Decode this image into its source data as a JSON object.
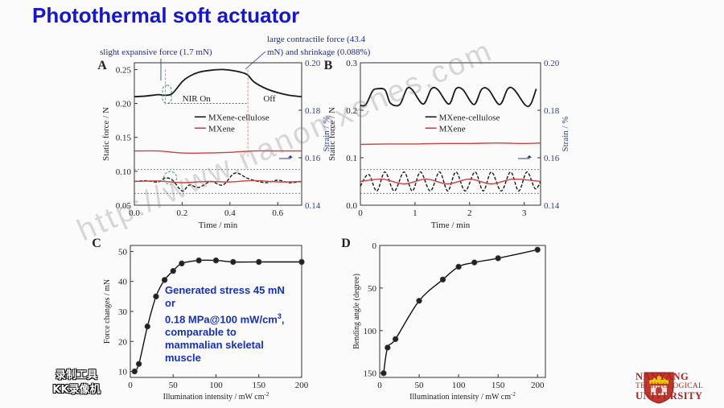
{
  "slide": {
    "title": "Photothermal soft actuator",
    "recorder_badge": [
      "录制工具",
      "KK录像机"
    ],
    "watermark": "http://www.nanomxenes.com",
    "university": {
      "line1": "NANYANG",
      "line2": "TECHNOLOGICAL",
      "line3": "UNIVERSITY"
    },
    "stress_note": {
      "line1": "Generated stress 45 mN",
      "line2": "or",
      "line3a": "0.18 MPa@100 mW/cm",
      "line3sup": "3",
      "line3b": ",",
      "line4": "comparable to",
      "line5": "mammalian skeletal",
      "line6": "muscle"
    }
  },
  "chart_data": [
    {
      "panel": "A",
      "type": "line",
      "xlabel": "Time / min",
      "ylabel": "Static force / N",
      "y2label": "Strain / %",
      "xlim": [
        0.0,
        0.7
      ],
      "ylim": [
        0.05,
        0.26
      ],
      "y2lim": [
        0.14,
        0.2
      ],
      "xticks": [
        "0.0",
        "0.2",
        "0.4",
        "0.6"
      ],
      "yticks": [
        "0.05",
        "0.10",
        "0.15",
        "0.20",
        "0.25"
      ],
      "y2ticks": [
        "0.14",
        "0.16",
        "0.18",
        "0.20"
      ],
      "annotations": {
        "slight": "slight expansive force (1.7 mN)",
        "large1": "large contractile force (43.4",
        "large2": "mN) and shrinkage (0.088%)",
        "nir_on": "NIR On",
        "off": "Off"
      },
      "legend": [
        "MXene-cellulose",
        "MXene"
      ],
      "series": [
        {
          "name": "MXene-cellulose",
          "axis": "force",
          "color": "#1a1a1a",
          "x": [
            0.0,
            0.05,
            0.1,
            0.13,
            0.16,
            0.2,
            0.23,
            0.27,
            0.32,
            0.37,
            0.42,
            0.47,
            0.5,
            0.55,
            0.6,
            0.65,
            0.7
          ],
          "y": [
            0.21,
            0.211,
            0.213,
            0.212,
            0.215,
            0.232,
            0.24,
            0.246,
            0.249,
            0.25,
            0.248,
            0.243,
            0.232,
            0.222,
            0.216,
            0.212,
            0.21
          ]
        },
        {
          "name": "MXene",
          "axis": "force",
          "color": "#d04040",
          "x": [
            0.0,
            0.1,
            0.2,
            0.3,
            0.4,
            0.5,
            0.6,
            0.7
          ],
          "y": [
            0.13,
            0.13,
            0.127,
            0.127,
            0.128,
            0.13,
            0.13,
            0.13
          ]
        },
        {
          "name": "MXene-cellulose",
          "axis": "strain",
          "color": "#1a1a1a",
          "dash": true,
          "x": [
            0.0,
            0.05,
            0.1,
            0.13,
            0.16,
            0.2,
            0.23,
            0.27,
            0.32,
            0.37,
            0.42,
            0.47,
            0.5,
            0.55,
            0.6,
            0.65,
            0.7
          ],
          "y": [
            0.15,
            0.1503,
            0.1498,
            0.1515,
            0.1505,
            0.146,
            0.1485,
            0.1475,
            0.15,
            0.1485,
            0.1535,
            0.1515,
            0.1505,
            0.1495,
            0.1505,
            0.1495,
            0.15
          ]
        },
        {
          "name": "MXene",
          "axis": "strain",
          "color": "#d04040",
          "x": [
            0.0,
            0.1,
            0.2,
            0.3,
            0.4,
            0.5,
            0.6,
            0.7
          ],
          "y": [
            0.15,
            0.1502,
            0.1495,
            0.15,
            0.1498,
            0.1504,
            0.1498,
            0.15
          ]
        }
      ]
    },
    {
      "panel": "B",
      "type": "line",
      "xlabel": "Time / min",
      "ylabel": "Static force / N",
      "y2label": "Strain / %",
      "xlim": [
        0,
        3.3
      ],
      "ylim": [
        0.0,
        0.3
      ],
      "y2lim": [
        0.14,
        0.2
      ],
      "xticks": [
        "0",
        "1",
        "2",
        "3"
      ],
      "yticks": [
        "0.0",
        "0.1",
        "0.2",
        "0.3"
      ],
      "y2ticks": [
        "0.14",
        "0.16",
        "0.18",
        "0.20"
      ],
      "legend": [
        "MXene-cellulose",
        "MXene"
      ],
      "series": [
        {
          "name": "MXene-cellulose",
          "axis": "force",
          "color": "#1a1a1a",
          "x": [
            0.0,
            0.1,
            0.22,
            0.3,
            0.45,
            0.55,
            0.72,
            0.85,
            0.95,
            1.15,
            1.3,
            1.42,
            1.62,
            1.75,
            1.88,
            2.08,
            2.22,
            2.35,
            2.55,
            2.7,
            2.82,
            3.02,
            3.12,
            3.22
          ],
          "y": [
            0.21,
            0.212,
            0.24,
            0.245,
            0.243,
            0.215,
            0.212,
            0.245,
            0.243,
            0.213,
            0.245,
            0.243,
            0.213,
            0.245,
            0.243,
            0.212,
            0.244,
            0.243,
            0.212,
            0.245,
            0.243,
            0.211,
            0.213,
            0.245
          ]
        },
        {
          "name": "MXene",
          "axis": "force",
          "color": "#d04040",
          "x": [
            0.0,
            0.5,
            1.0,
            1.5,
            2.0,
            2.5,
            3.0,
            3.3
          ],
          "y": [
            0.128,
            0.129,
            0.129,
            0.13,
            0.13,
            0.131,
            0.13,
            0.131
          ]
        },
        {
          "name": "MXene-cellulose",
          "axis": "strain",
          "color": "#1a1a1a",
          "dash": true,
          "x": [
            0.0,
            0.15,
            0.3,
            0.45,
            0.62,
            0.8,
            0.95,
            1.1,
            1.28,
            1.45,
            1.6,
            1.75,
            1.92,
            2.1,
            2.25,
            2.4,
            2.58,
            2.75,
            2.9,
            3.05,
            3.2,
            3.3
          ],
          "y": [
            0.148,
            0.153,
            0.146,
            0.154,
            0.146,
            0.154,
            0.146,
            0.154,
            0.146,
            0.154,
            0.146,
            0.154,
            0.146,
            0.154,
            0.146,
            0.154,
            0.146,
            0.154,
            0.146,
            0.154,
            0.147,
            0.15
          ]
        },
        {
          "name": "MXene",
          "axis": "strain",
          "color": "#d04040",
          "x": [
            0.0,
            0.4,
            0.8,
            1.2,
            1.6,
            2.0,
            2.4,
            2.8,
            3.3
          ],
          "y": [
            0.15,
            0.151,
            0.149,
            0.151,
            0.149,
            0.151,
            0.149,
            0.151,
            0.15
          ]
        }
      ]
    },
    {
      "panel": "C",
      "type": "scatter",
      "xlabel": "Illumination intensity / mW cm",
      "xlabel_sup": "-2",
      "ylabel": "Force changes / mN",
      "xlim": [
        0,
        200
      ],
      "ylim": [
        8,
        52
      ],
      "xticks": [
        "0",
        "50",
        "100",
        "150",
        "200"
      ],
      "yticks": [
        "10",
        "20",
        "30",
        "40",
        "50"
      ],
      "x": [
        5,
        10,
        20,
        30,
        40,
        50,
        60,
        80,
        100,
        120,
        150,
        200
      ],
      "y": [
        10,
        12.5,
        25,
        35,
        40.5,
        43.5,
        46,
        47,
        47,
        46.5,
        46.5,
        46.5
      ]
    },
    {
      "panel": "D",
      "type": "scatter",
      "xlabel": "Illumination intensity / mW cm",
      "xlabel_sup": "-2",
      "ylabel": "Bending angle (degree)",
      "xlim": [
        0,
        210
      ],
      "ylim": [
        0,
        155
      ],
      "y_inverted": true,
      "xticks": [
        "0",
        "50",
        "100",
        "150",
        "200"
      ],
      "yticks": [
        "0",
        "50",
        "100",
        "150"
      ],
      "x": [
        5,
        10,
        20,
        50,
        80,
        100,
        120,
        150,
        200
      ],
      "y": [
        150,
        120,
        110,
        65,
        40,
        25,
        20,
        15,
        5
      ]
    }
  ]
}
